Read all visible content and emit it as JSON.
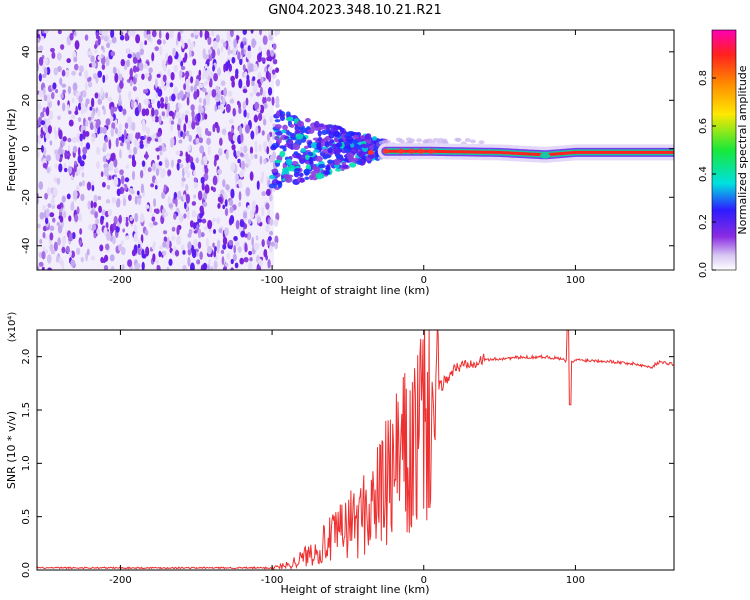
{
  "title": "GN04.2023.348.10.21.R21",
  "chart_data": [
    {
      "type": "heatmap",
      "title": "GN04.2023.348.10.21.R21",
      "xlabel": "Height of straight line (km)",
      "ylabel": "Frequency (Hz)",
      "xlim": [
        -255,
        165
      ],
      "ylim": [
        -50,
        49
      ],
      "xticks": [
        -200,
        -100,
        0,
        100
      ],
      "xtick_labels": [
        "-200",
        "-100",
        "0",
        "100"
      ],
      "yticks": [
        -40,
        -20,
        0,
        20,
        40
      ],
      "ytick_labels": [
        "-40",
        "-20",
        "0",
        "20",
        "40"
      ],
      "noise_region_x": [
        -255,
        -100
      ],
      "transition_region_x": [
        -100,
        -25
      ],
      "carrier_line": {
        "x_start": -25,
        "x_end": 165,
        "frequency_hz": [
          {
            "x": -25,
            "f": -1
          },
          {
            "x": 0,
            "f": -1
          },
          {
            "x": 50,
            "f": -1.5
          },
          {
            "x": 80,
            "f": -2.5
          },
          {
            "x": 100,
            "f": -1.5
          },
          {
            "x": 165,
            "f": -1.5
          }
        ]
      },
      "colorbar": {
        "label": "Normalized spectral amplitude",
        "range": [
          0.0,
          1.0
        ],
        "ticks": [
          0.0,
          0.2,
          0.4,
          0.6,
          0.8
        ],
        "tick_labels": [
          "0.0",
          "0.2",
          "0.4",
          "0.6",
          "0.8"
        ],
        "colors": [
          "#ffffff",
          "#d8c8f4",
          "#8a2be2",
          "#2d1cff",
          "#00e0e0",
          "#18e838",
          "#ffe800",
          "#ff8800",
          "#ff2020",
          "#ff00b4"
        ]
      }
    },
    {
      "type": "line",
      "xlabel": "Height of straight line (km)",
      "ylabel": "SNR (10 * v/v)",
      "scale_label": "(x10⁴)",
      "xlim": [
        -255,
        165
      ],
      "ylim": [
        0,
        2.25
      ],
      "xticks": [
        -200,
        -100,
        0,
        100
      ],
      "xtick_labels": [
        "-200",
        "-100",
        "0",
        "100"
      ],
      "yticks": [
        0.0,
        0.5,
        1.0,
        1.5,
        2.0
      ],
      "ytick_labels": [
        "0.0",
        "0.5",
        "1.0",
        "1.5",
        "2.0"
      ],
      "color": "#ee3030",
      "series": [
        {
          "name": "SNR",
          "x": [
            -255,
            -150,
            -100,
            -90,
            -80,
            -70,
            -60,
            -50,
            -40,
            -30,
            -20,
            -15,
            -10,
            -5,
            0,
            10,
            20,
            30,
            40,
            60,
            80,
            90,
            94,
            96,
            100,
            120,
            140,
            150,
            155,
            165
          ],
          "y": [
            0.02,
            0.02,
            0.02,
            0.05,
            0.12,
            0.22,
            0.32,
            0.45,
            0.55,
            0.75,
            0.95,
            1.2,
            1.05,
            1.3,
            1.5,
            1.7,
            1.88,
            1.95,
            1.97,
            1.99,
            2.0,
            1.98,
            1.96,
            1.93,
            1.97,
            1.96,
            1.93,
            1.9,
            1.95,
            1.93
          ]
        }
      ]
    }
  ]
}
